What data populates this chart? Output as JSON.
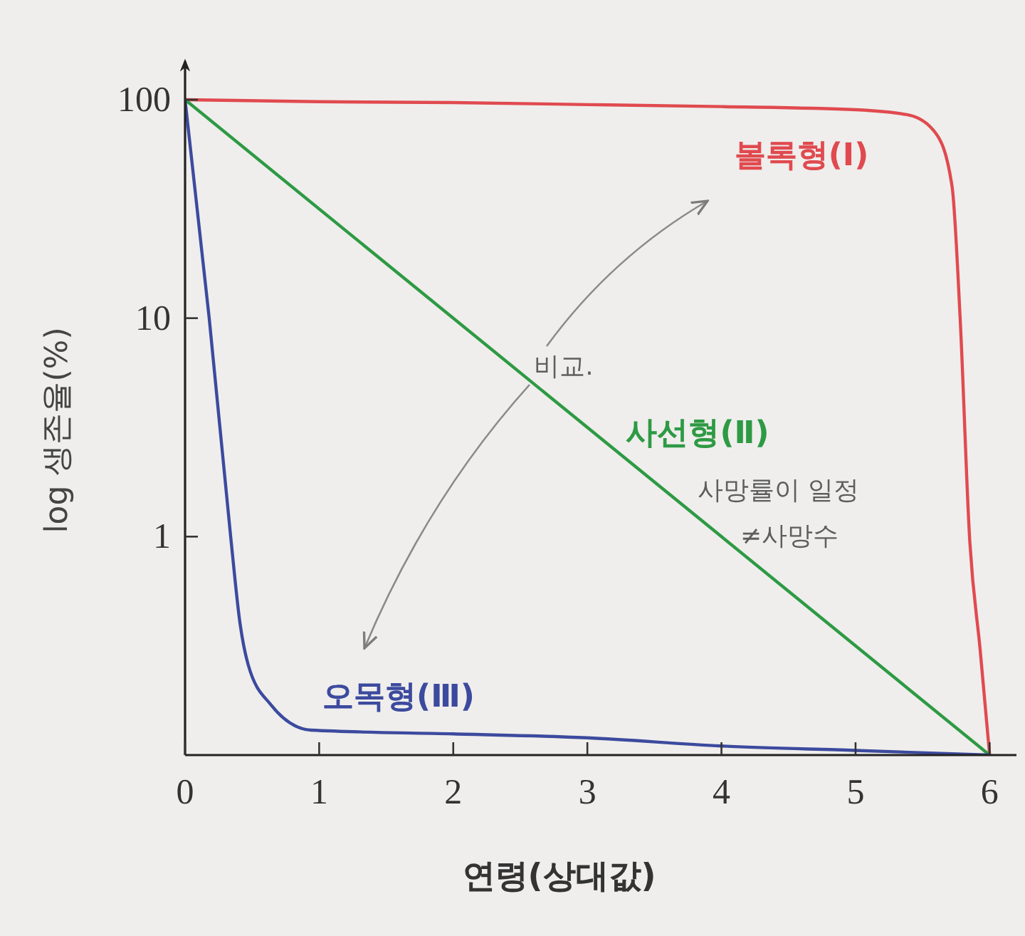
{
  "chart_data": {
    "type": "line",
    "xlabel": "연령(상대값)",
    "ylabel": "log 생존율(%)",
    "series": [
      {
        "name": "볼록형(Ⅰ)",
        "color": "#e04a4f",
        "x": [
          0,
          1,
          2,
          3,
          4,
          5,
          5.4,
          5.6,
          5.72,
          5.78,
          5.85,
          5.93,
          6
        ],
        "values": [
          100,
          98,
          97,
          95,
          93,
          90,
          85,
          70,
          40,
          10,
          1,
          0.3,
          0.1
        ]
      },
      {
        "name": "사선형(Ⅱ)",
        "color": "#2e9a44",
        "x": [
          0,
          6
        ],
        "values": [
          100,
          0.1
        ]
      },
      {
        "name": "오목형(Ⅲ)",
        "color": "#3c4a9e",
        "x": [
          0,
          0.18,
          0.34,
          0.41,
          0.47,
          0.64,
          0.94,
          2,
          3,
          4,
          5,
          6
        ],
        "values": [
          100,
          10,
          1,
          0.4,
          0.26,
          0.17,
          0.13,
          0.125,
          0.12,
          0.11,
          0.105,
          0.1
        ]
      }
    ],
    "xlim": [
      0,
      6.2
    ],
    "xticks": [
      0,
      1,
      2,
      3,
      4,
      5,
      6
    ],
    "ylim": [
      0.1,
      150
    ],
    "yticks": [
      1,
      10,
      100
    ],
    "log": "y",
    "marker": "none",
    "line_style": "solid",
    "annotations": [
      "비교.",
      "사망률이 일정",
      "≠사망수"
    ]
  }
}
